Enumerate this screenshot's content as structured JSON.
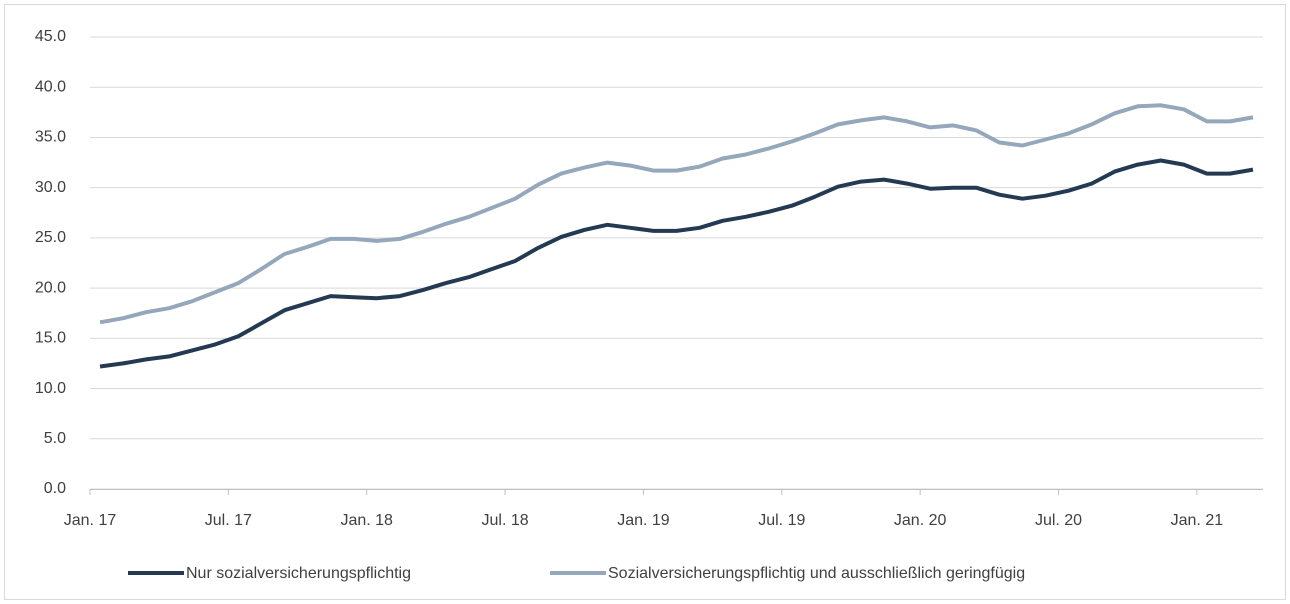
{
  "chart_data": {
    "type": "line",
    "categories": [
      "Jan. 17",
      null,
      null,
      null,
      null,
      null,
      "Jul. 17",
      null,
      null,
      null,
      null,
      null,
      "Jan. 18",
      null,
      null,
      null,
      null,
      null,
      "Jul. 18",
      null,
      null,
      null,
      null,
      null,
      "Jan. 19",
      null,
      null,
      null,
      null,
      null,
      "Jul. 19",
      null,
      null,
      null,
      null,
      null,
      "Jan. 20",
      null,
      null,
      null,
      null,
      null,
      "Jul. 20",
      null,
      null,
      null,
      null,
      null,
      "Jan. 21",
      null,
      null
    ],
    "series": [
      {
        "name": "Nur sozialversicherungspflichtig",
        "color": "#243a53",
        "values": [
          12.2,
          12.5,
          12.9,
          13.2,
          13.8,
          14.4,
          15.2,
          16.5,
          17.8,
          18.5,
          19.2,
          19.1,
          19.0,
          19.2,
          19.8,
          20.5,
          21.1,
          21.9,
          22.7,
          24.0,
          25.1,
          25.8,
          26.3,
          26.0,
          25.7,
          25.7,
          26.0,
          26.7,
          27.1,
          27.6,
          28.2,
          29.1,
          30.1,
          30.6,
          30.8,
          30.4,
          29.9,
          30.0,
          30.0,
          29.3,
          28.9,
          29.2,
          29.7,
          30.4,
          31.6,
          32.3,
          32.7,
          32.3,
          31.4,
          31.4,
          31.8
        ]
      },
      {
        "name": "Sozialversicherungspflichtig und ausschließlich geringfügig",
        "color": "#94a7bb",
        "values": [
          16.6,
          17.0,
          17.6,
          18.0,
          18.7,
          19.6,
          20.5,
          21.9,
          23.4,
          24.1,
          24.9,
          24.9,
          24.7,
          24.9,
          25.6,
          26.4,
          27.1,
          28.0,
          28.9,
          30.3,
          31.4,
          32.0,
          32.5,
          32.2,
          31.7,
          31.7,
          32.1,
          32.9,
          33.3,
          33.9,
          34.6,
          35.4,
          36.3,
          36.7,
          37.0,
          36.6,
          36.0,
          36.2,
          35.7,
          34.5,
          34.2,
          34.8,
          35.4,
          36.3,
          37.4,
          38.1,
          38.2,
          37.8,
          36.6,
          36.6,
          37.0
        ]
      }
    ],
    "ylim": [
      0,
      45
    ],
    "yticks": [
      {
        "value": 0,
        "label": "0.0"
      },
      {
        "value": 5,
        "label": "5.0"
      },
      {
        "value": 10,
        "label": "10.0"
      },
      {
        "value": 15,
        "label": "15.0"
      },
      {
        "value": 20,
        "label": "20.0"
      },
      {
        "value": 25,
        "label": "25.0"
      },
      {
        "value": 30,
        "label": "30.0"
      },
      {
        "value": 35,
        "label": "35.0"
      },
      {
        "value": 40,
        "label": "40.0"
      },
      {
        "value": 45,
        "label": "45.0"
      }
    ],
    "grid": true
  }
}
